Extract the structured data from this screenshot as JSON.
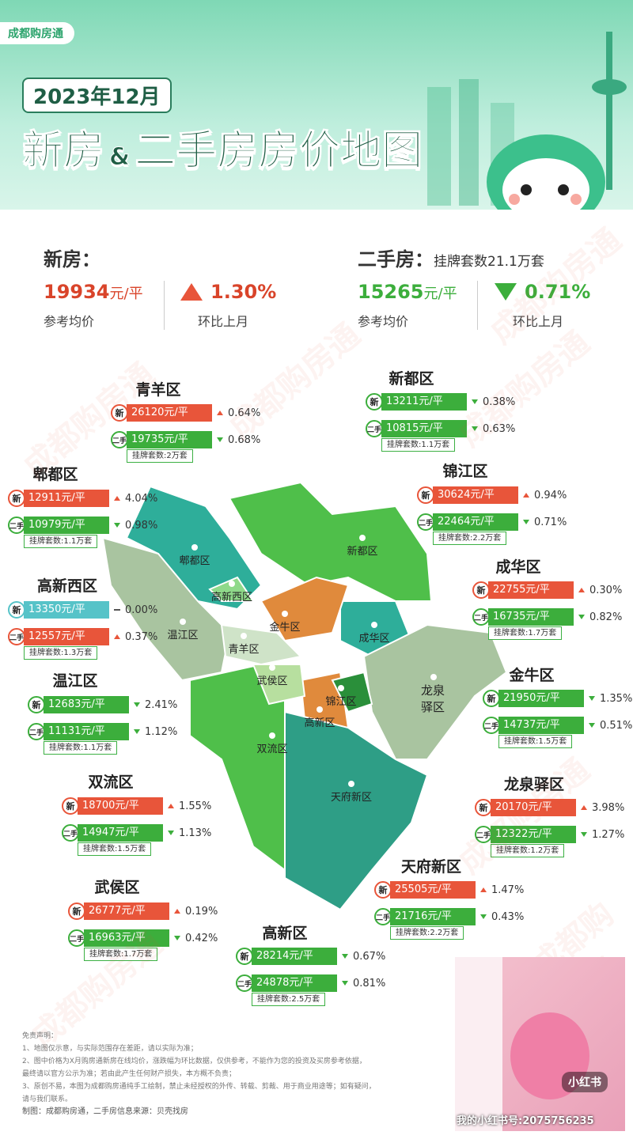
{
  "header": {
    "brand": "成都购房通",
    "date": "2023年12月",
    "title_a": "新房",
    "title_amp": "&",
    "title_b": "二手房房价地图"
  },
  "labels": {
    "new": "新",
    "second": "二手"
  },
  "summary": {
    "new": {
      "label": "新房：",
      "price": "19934",
      "unit": "元/平",
      "price_label": "参考均价",
      "direction": "up",
      "change": "1.30%",
      "change_label": "环比上月"
    },
    "second": {
      "label": "二手房：",
      "listings": "挂牌套数21.1万套",
      "price": "15265",
      "unit": "元/平",
      "price_label": "参考均价",
      "direction": "down",
      "change": "0.71%",
      "change_label": "环比上月"
    }
  },
  "districts": [
    {
      "name": "青羊区",
      "new": {
        "price": "26120元/平",
        "direction": "up",
        "change": "0.64%"
      },
      "second": {
        "price": "19735元/平",
        "direction": "down",
        "change": "0.68%"
      },
      "listings": "挂牌套数:2万套"
    },
    {
      "name": "新都区",
      "new": {
        "price": "13211元/平",
        "direction": "down",
        "change": "0.38%"
      },
      "second": {
        "price": "10815元/平",
        "direction": "down",
        "change": "0.63%"
      },
      "listings": "挂牌套数:1.1万套"
    },
    {
      "name": "郫都区",
      "new": {
        "price": "12911元/平",
        "direction": "up",
        "change": "4.04%"
      },
      "second": {
        "price": "10979元/平",
        "direction": "down",
        "change": "0.98%"
      },
      "listings": "挂牌套数:1.1万套"
    },
    {
      "name": "锦江区",
      "new": {
        "price": "30624元/平",
        "direction": "up",
        "change": "0.94%"
      },
      "second": {
        "price": "22464元/平",
        "direction": "down",
        "change": "0.71%"
      },
      "listings": "挂牌套数:2.2万套"
    },
    {
      "name": "高新西区",
      "new": {
        "price": "13350元/平",
        "direction": "flat",
        "change": "0.00%"
      },
      "second": {
        "price": "12557元/平",
        "direction": "up",
        "change": "0.37%"
      },
      "listings": "挂牌套数:1.3万套"
    },
    {
      "name": "成华区",
      "new": {
        "price": "22755元/平",
        "direction": "up",
        "change": "0.30%"
      },
      "second": {
        "price": "16735元/平",
        "direction": "down",
        "change": "0.82%"
      },
      "listings": "挂牌套数:1.7万套"
    },
    {
      "name": "温江区",
      "new": {
        "price": "12683元/平",
        "direction": "down",
        "change": "2.41%"
      },
      "second": {
        "price": "11131元/平",
        "direction": "down",
        "change": "1.12%"
      },
      "listings": "挂牌套数:1.1万套"
    },
    {
      "name": "金牛区",
      "new": {
        "price": "21950元/平",
        "direction": "down",
        "change": "1.35%"
      },
      "second": {
        "price": "14737元/平",
        "direction": "down",
        "change": "0.51%"
      },
      "listings": "挂牌套数:1.5万套"
    },
    {
      "name": "双流区",
      "new": {
        "price": "18700元/平",
        "direction": "up",
        "change": "1.55%"
      },
      "second": {
        "price": "14947元/平",
        "direction": "down",
        "change": "1.13%"
      },
      "listings": "挂牌套数:1.5万套"
    },
    {
      "name": "龙泉驿区",
      "new": {
        "price": "20170元/平",
        "direction": "up",
        "change": "3.98%"
      },
      "second": {
        "price": "12322元/平",
        "direction": "down",
        "change": "1.27%"
      },
      "listings": "挂牌套数:1.2万套"
    },
    {
      "name": "天府新区",
      "new": {
        "price": "25505元/平",
        "direction": "up",
        "change": "1.47%"
      },
      "second": {
        "price": "21716元/平",
        "direction": "down",
        "change": "0.43%"
      },
      "listings": "挂牌套数:2.2万套"
    },
    {
      "name": "武侯区",
      "new": {
        "price": "26777元/平",
        "direction": "up",
        "change": "0.19%"
      },
      "second": {
        "price": "16963元/平",
        "direction": "down",
        "change": "0.42%"
      },
      "listings": "挂牌套数:1.7万套"
    },
    {
      "name": "高新区",
      "new": {
        "price": "28214元/平",
        "direction": "down",
        "change": "0.67%"
      },
      "second": {
        "price": "24878元/平",
        "direction": "down",
        "change": "0.81%"
      },
      "listings": "挂牌套数:2.5万套"
    }
  ],
  "disclaimer": {
    "title": "免责声明：",
    "lines": [
      "1、地图仅示意，与实际范围存在差距，请以实际为准；",
      "2、图中价格为X月购房通新房在线均价，涨跌幅为环比数据，仅供参考，不能作为您的投资及买房参考依据，",
      "最终请以官方公示为准；若由此产生任何财产损失，本方概不负责；",
      "3、原创不易，本图为成都购房通纯手工绘制，禁止未经授权的外传、转载、剪裁、用于商业用途等；如有疑问，",
      "请与我们联系。"
    ],
    "credit": "制图：成都购房通，二手房信息来源：贝壳找房"
  },
  "photo": {
    "logo": "小红书",
    "caption": "我的小红书号:2075756235"
  }
}
